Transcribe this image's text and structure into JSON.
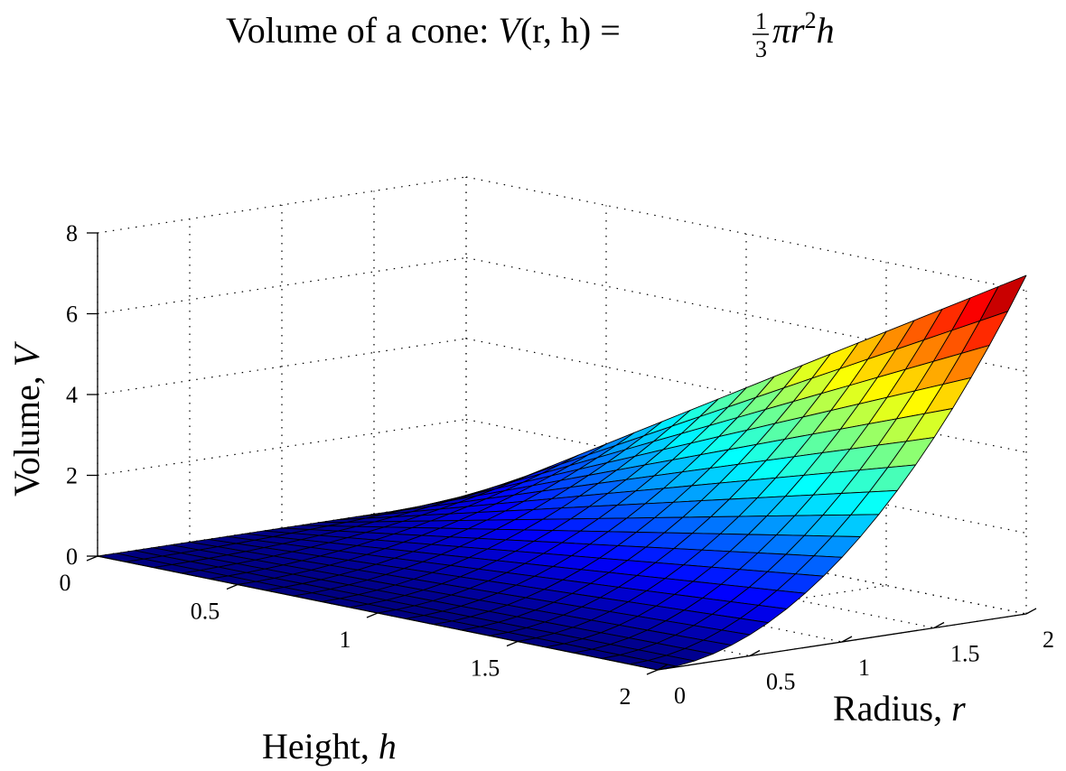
{
  "chart_data": {
    "type": "surface",
    "title_prefix": "Volume of a cone: ",
    "title_formula": {
      "lhs": "V",
      "args": "(r, h)",
      "eq": " = ",
      "num": "1",
      "den": "3",
      "pi": "π",
      "var_r": "r",
      "exp": "2",
      "var_h": "h"
    },
    "xlabel": {
      "text": "Height, ",
      "var": "h"
    },
    "ylabel": {
      "text": "Radius, ",
      "var": "r"
    },
    "zlabel": {
      "text": "Volume, ",
      "var": "V"
    },
    "x_ticks": [
      "0",
      "0.5",
      "1",
      "1.5",
      "2"
    ],
    "y_ticks": [
      "0",
      "0.5",
      "1",
      "1.5",
      "2"
    ],
    "z_ticks": [
      "0",
      "2",
      "4",
      "6",
      "8"
    ],
    "xlim": [
      0,
      2
    ],
    "ylim": [
      0,
      2
    ],
    "zlim": [
      0,
      8
    ],
    "grid": true,
    "colormap": "jet",
    "grid_samples": 21,
    "function": "V = (1/3) * pi * r^2 * h",
    "colors": {
      "edge": "#000000",
      "grid": "#000000",
      "background": "#ffffff"
    }
  }
}
